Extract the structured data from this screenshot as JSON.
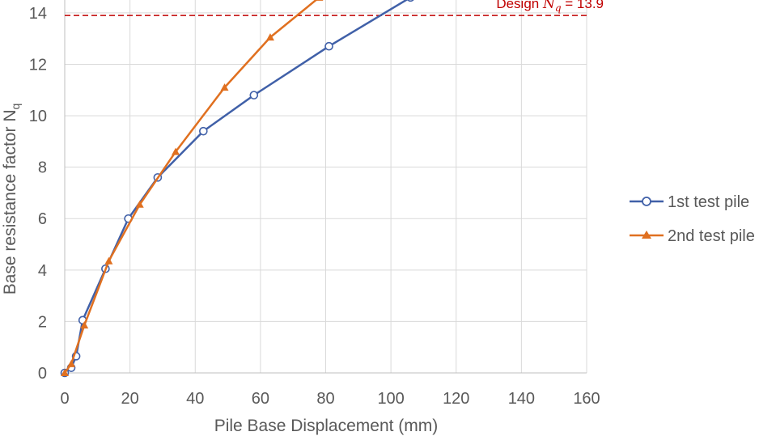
{
  "chart_data": {
    "type": "line",
    "title": "",
    "xlabel": "Pile Base Displacement (mm)",
    "ylabel_main": "Base resistance factor N",
    "ylabel_sub": "q",
    "xlim": [
      0,
      160
    ],
    "ylim": [
      0,
      14.5
    ],
    "x_ticks": [
      0,
      20,
      40,
      60,
      80,
      100,
      120,
      140,
      160
    ],
    "y_ticks": [
      0,
      2,
      4,
      6,
      8,
      10,
      12,
      14
    ],
    "grid": true,
    "legend_position": "right",
    "series": [
      {
        "name": "1st test pile",
        "color": "#4060a8",
        "marker": "circle",
        "x": [
          0,
          2,
          3.5,
          5.5,
          12.5,
          19.5,
          28.5,
          42.5,
          58,
          81,
          106
        ],
        "y": [
          0,
          0.2,
          0.65,
          2.05,
          4.05,
          6.0,
          7.6,
          9.4,
          10.8,
          12.7,
          14.6
        ]
      },
      {
        "name": "2nd test pile",
        "color": "#e07020",
        "marker": "triangle",
        "x": [
          0,
          2,
          6,
          13.5,
          23,
          34,
          49,
          63,
          78
        ],
        "y": [
          0,
          0.35,
          1.85,
          4.35,
          6.55,
          8.6,
          11.1,
          13.05,
          14.6
        ]
      }
    ],
    "reference_line": {
      "y": 13.9,
      "color": "#c00000",
      "label_prefix": "Design ",
      "label_symbol": "N",
      "label_sub": "q",
      "label_value": " = 13.9"
    }
  }
}
